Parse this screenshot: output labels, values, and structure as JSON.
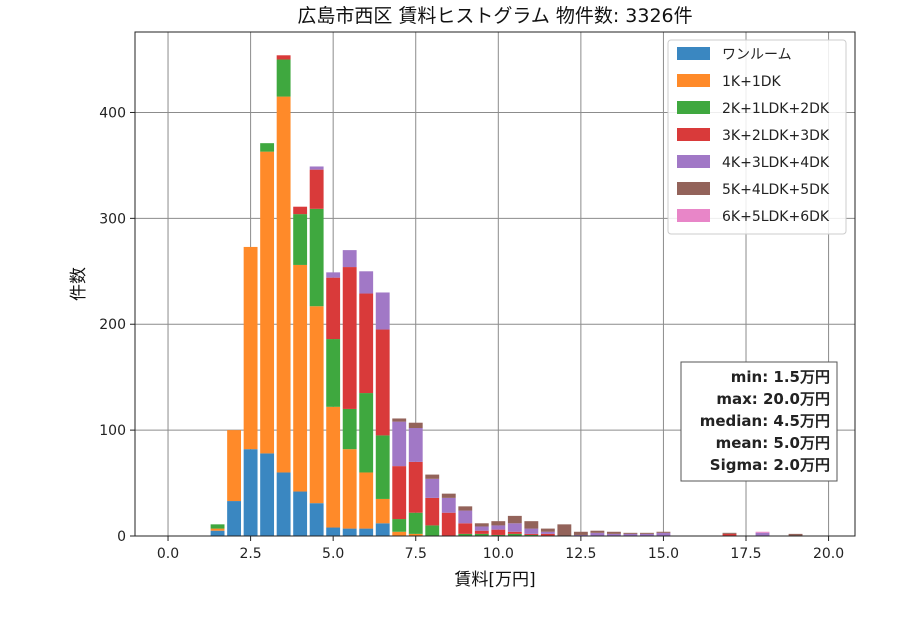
{
  "chart_data": {
    "type": "bar",
    "stacked": true,
    "title": "広島市西区 賃料ヒストグラム 物件数: 3326件",
    "xlabel": "賃料[万円]",
    "ylabel": "件数",
    "xlim": [
      -1.0,
      20.8
    ],
    "ylim": [
      0,
      476
    ],
    "xticks": [
      0.0,
      2.5,
      5.0,
      7.5,
      10.0,
      12.5,
      15.0,
      17.5,
      20.0
    ],
    "xtick_labels": [
      "0.0",
      "2.5",
      "5.0",
      "7.5",
      "10.0",
      "12.5",
      "15.0",
      "17.5",
      "20.0"
    ],
    "yticks": [
      0,
      100,
      200,
      300,
      400
    ],
    "ytick_labels": [
      "0",
      "100",
      "200",
      "300",
      "400"
    ],
    "grid": true,
    "legend_position": "top-right",
    "bin_width": 0.5,
    "x": [
      1.5,
      2.0,
      2.5,
      3.0,
      3.5,
      4.0,
      4.5,
      5.0,
      5.5,
      6.0,
      6.5,
      7.0,
      7.5,
      8.0,
      8.5,
      9.0,
      9.5,
      10.0,
      10.5,
      11.0,
      11.5,
      12.0,
      12.5,
      13.0,
      13.5,
      14.0,
      14.5,
      15.0,
      15.5,
      16.0,
      16.5,
      17.0,
      17.5,
      18.0,
      18.5,
      19.0,
      19.5,
      20.0
    ],
    "series": [
      {
        "name": "ワンルーム",
        "color": "#3a87c1",
        "values": [
          5,
          33,
          82,
          78,
          60,
          42,
          31,
          8,
          7,
          7,
          12,
          0,
          0,
          0,
          0,
          0,
          0,
          0,
          0,
          0,
          0,
          0,
          0,
          0,
          0,
          0,
          0,
          0,
          0,
          0,
          0,
          0,
          0,
          0,
          0,
          0,
          0,
          0
        ]
      },
      {
        "name": "1K+1DK",
        "color": "#ff8a29",
        "values": [
          2,
          67,
          191,
          285,
          355,
          214,
          186,
          114,
          75,
          53,
          23,
          4,
          2,
          0,
          0,
          0,
          0,
          0,
          0,
          0,
          0,
          0,
          0,
          0,
          0,
          0,
          0,
          0,
          0,
          0,
          0,
          0,
          0,
          0,
          0,
          0,
          0,
          0
        ]
      },
      {
        "name": "2K+1LDK+2DK",
        "color": "#3fa83f",
        "values": [
          4,
          0,
          0,
          8,
          35,
          48,
          92,
          64,
          38,
          75,
          60,
          12,
          20,
          10,
          0,
          2,
          2,
          1,
          2,
          1,
          0,
          0,
          0,
          0,
          0,
          0,
          0,
          0,
          0,
          0,
          0,
          0,
          0,
          0,
          0,
          0,
          0,
          0
        ]
      },
      {
        "name": "3K+2LDK+3DK",
        "color": "#d93a3a",
        "values": [
          0,
          0,
          0,
          0,
          4,
          7,
          37,
          58,
          134,
          94,
          100,
          50,
          48,
          26,
          22,
          10,
          3,
          5,
          2,
          1,
          2,
          0,
          0,
          0,
          0,
          0,
          0,
          0,
          0,
          0,
          0,
          2,
          0,
          0,
          0,
          0,
          0,
          0
        ]
      },
      {
        "name": "4K+3LDK+4DK",
        "color": "#a178c6",
        "values": [
          0,
          0,
          0,
          0,
          0,
          0,
          3,
          5,
          16,
          21,
          35,
          42,
          32,
          18,
          14,
          12,
          4,
          4,
          8,
          5,
          2,
          0,
          1,
          3,
          2,
          2,
          2,
          3,
          0,
          0,
          0,
          0,
          0,
          3,
          0,
          0,
          0,
          0
        ]
      },
      {
        "name": "5K+4LDK+5DK",
        "color": "#93635a",
        "values": [
          0,
          0,
          0,
          0,
          0,
          0,
          0,
          0,
          0,
          0,
          0,
          3,
          5,
          4,
          4,
          4,
          3,
          4,
          7,
          7,
          3,
          11,
          3,
          2,
          2,
          1,
          1,
          1,
          0,
          0,
          0,
          1,
          0,
          0,
          0,
          2,
          0,
          0
        ]
      },
      {
        "name": "6K+5LDK+6DK",
        "color": "#e886c8",
        "values": [
          0,
          0,
          0,
          0,
          0,
          0,
          0,
          0,
          0,
          0,
          0,
          0,
          0,
          0,
          0,
          0,
          0,
          0,
          0,
          0,
          0,
          0,
          0,
          0,
          0,
          0,
          0,
          0,
          0,
          0,
          0,
          0,
          0,
          1,
          0,
          0,
          0,
          0
        ]
      }
    ],
    "annotations": {
      "stats_lines": [
        "min: 1.5万円",
        "max: 20.0万円",
        "median: 4.5万円",
        "mean: 5.0万円",
        "Sigma: 2.0万円"
      ]
    }
  }
}
